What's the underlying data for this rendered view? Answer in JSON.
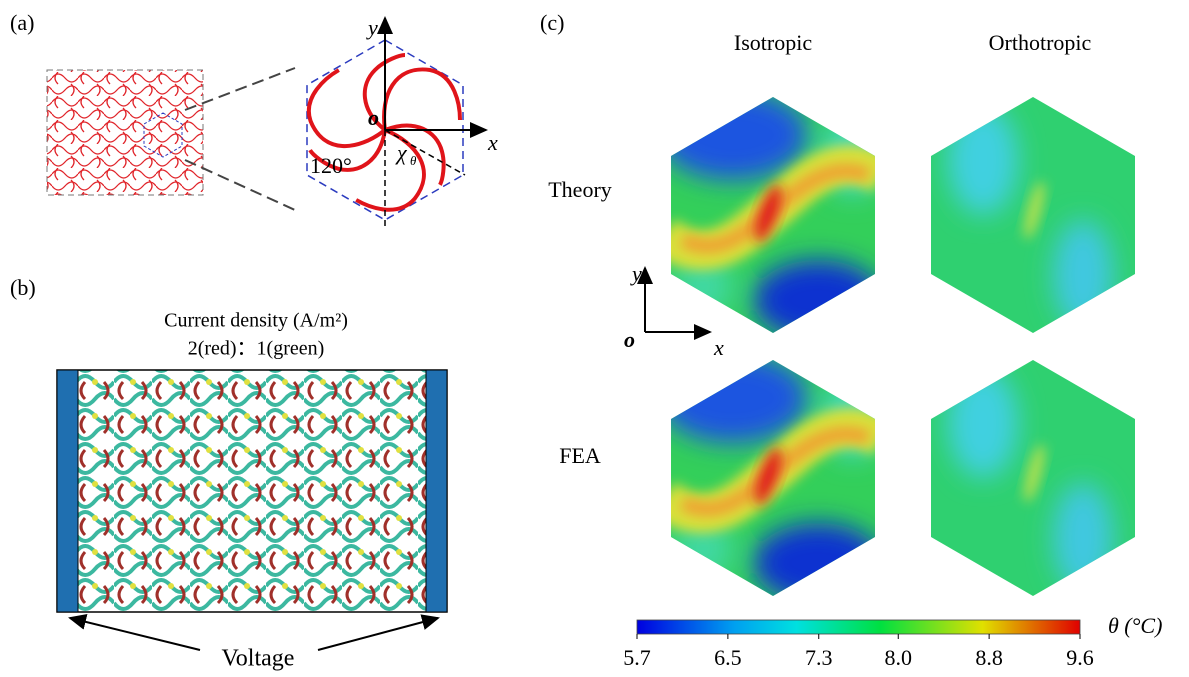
{
  "panel_a": {
    "label": "(a)",
    "axis_y": "y",
    "axis_o": "o",
    "axis_x": "x",
    "angle": "120°",
    "chirality": "χ",
    "chirality_sub": "θ"
  },
  "panel_b": {
    "label": "(b)",
    "title": "Current density (A/m²)",
    "ratio": "2(red)：1(green)",
    "voltage": "Voltage"
  },
  "panel_c": {
    "label": "(c)",
    "columns": [
      "Isotropic",
      "Orthotropic"
    ],
    "rows": [
      "Theory",
      "FEA"
    ],
    "axis_y": "y",
    "axis_o": "o",
    "axis_x": "x",
    "colorbar": {
      "label": "θ (°C)",
      "lim": [
        5.7,
        9.6
      ],
      "ticks": [
        5.7,
        6.5,
        7.3,
        {
          "value": 8,
          "label": "8.0"
        },
        8.8,
        9.6
      ]
    }
  }
}
